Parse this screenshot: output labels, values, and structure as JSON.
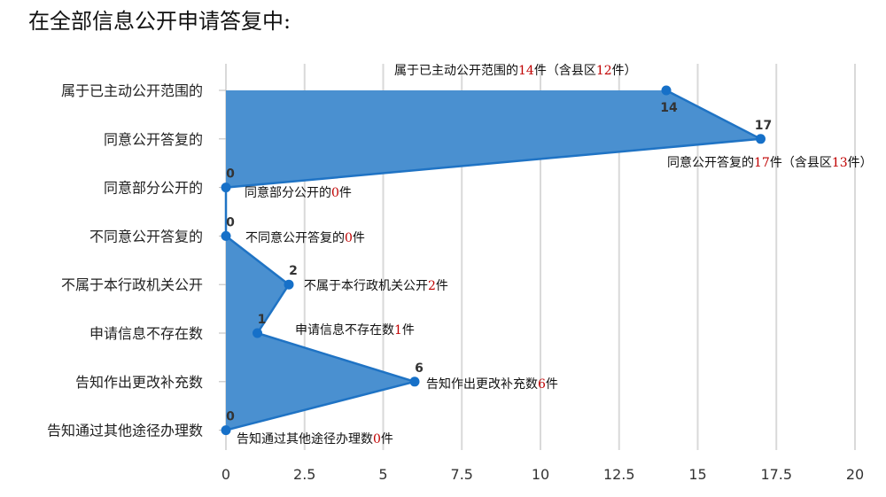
{
  "chart_data": {
    "type": "area",
    "orientation": "horizontal",
    "title": "在全部信息公开申请答复中:",
    "xlim": [
      0,
      20
    ],
    "x_ticks": [
      "0",
      "2.5",
      "5",
      "7.5",
      "10",
      "12.5",
      "15",
      "17.5",
      "20"
    ],
    "grid": true,
    "colors": {
      "area": "#4a90d0",
      "line": "#1f73c4",
      "point": "#1670c8",
      "highlight": "#c00000",
      "grid": "#d9d9d9"
    },
    "categories": [
      "属于已主动公开范围的",
      "同意公开答复的",
      "同意部分公开的",
      "不同意公开答复的",
      "不属于本行政机关公开",
      "申请信息不存在数",
      "告知作出更改补充数",
      "告知通过其他途径办理数"
    ],
    "values": [
      14,
      17,
      0,
      0,
      2,
      1,
      6,
      0
    ],
    "annotations": [
      {
        "parts": [
          [
            "属于已主动公开范围的",
            false
          ],
          [
            "14",
            true
          ],
          [
            "件（含县区",
            false
          ],
          [
            "12",
            true
          ],
          [
            "件）",
            false
          ]
        ]
      },
      {
        "parts": [
          [
            "同意公开答复的",
            false
          ],
          [
            "17",
            true
          ],
          [
            "件（含县区",
            false
          ],
          [
            "13",
            true
          ],
          [
            "件）",
            false
          ]
        ]
      },
      {
        "parts": [
          [
            "同意部分公开的",
            false
          ],
          [
            "0",
            true
          ],
          [
            "件",
            false
          ]
        ]
      },
      {
        "parts": [
          [
            "不同意公开答复的",
            false
          ],
          [
            "0",
            true
          ],
          [
            "件",
            false
          ]
        ]
      },
      {
        "parts": [
          [
            "不属于本行政机关公开",
            false
          ],
          [
            "2",
            true
          ],
          [
            "件",
            false
          ]
        ]
      },
      {
        "parts": [
          [
            "申请信息不存在数",
            false
          ],
          [
            "1",
            true
          ],
          [
            "件",
            false
          ]
        ]
      },
      {
        "parts": [
          [
            "告知作出更改补充数",
            false
          ],
          [
            "6",
            true
          ],
          [
            "件",
            false
          ]
        ]
      },
      {
        "parts": [
          [
            "告知通过其他途径办理数",
            false
          ],
          [
            "0",
            true
          ],
          [
            "件",
            false
          ]
        ]
      }
    ]
  }
}
